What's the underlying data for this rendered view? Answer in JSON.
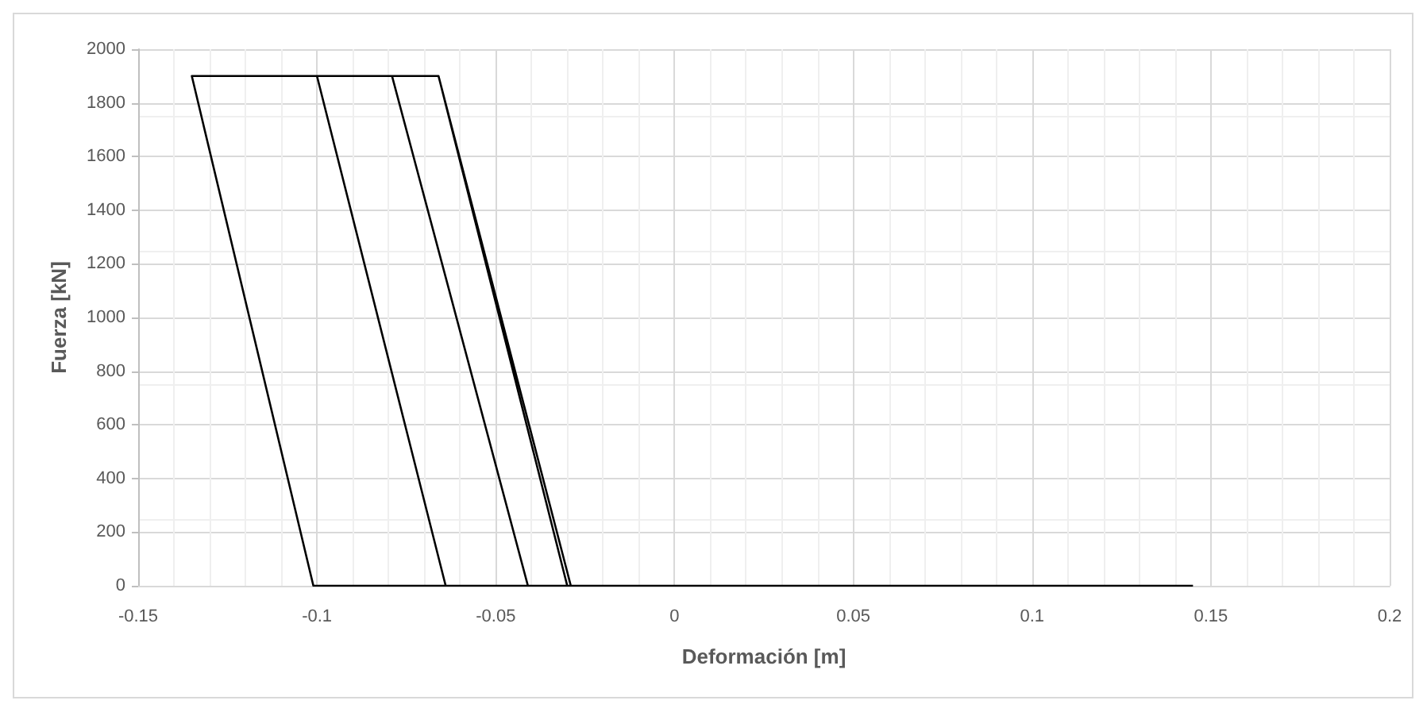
{
  "chart_data": {
    "type": "line",
    "xlabel": "Deformación [m]",
    "ylabel": "Fuerza [kN]",
    "series": [
      {
        "color": "#000000",
        "x": [
          0.145,
          -0.029,
          -0.066,
          -0.079,
          -0.041,
          -0.03,
          -0.066,
          -0.1,
          -0.064,
          -0.029,
          -0.066,
          -0.135,
          -0.101,
          -0.029
        ],
        "values": [
          0,
          0,
          1900,
          1900,
          0,
          0,
          1900,
          1900,
          0,
          0,
          1900,
          1900,
          0,
          0
        ]
      }
    ],
    "xlim": [
      -0.15,
      0.2
    ],
    "xticks": [
      -0.15,
      -0.1,
      -0.05,
      0,
      0.05,
      0.1,
      0.15,
      0.2
    ],
    "ylim": [
      0,
      2000
    ],
    "yticks": [
      0,
      200,
      400,
      600,
      800,
      1000,
      1200,
      1400,
      1600,
      1800,
      2000
    ],
    "grid": true,
    "marker": "none",
    "line_style": "solid"
  }
}
